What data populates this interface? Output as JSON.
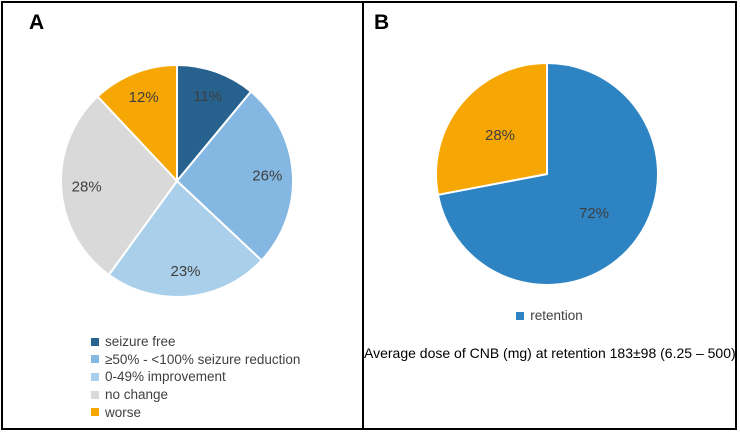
{
  "panels": {
    "a": {
      "label": "A"
    },
    "b": {
      "label": "B",
      "caption": "Average dose of CNB (mg) at retention 183±98 (6.25 – 500)"
    }
  },
  "colors": {
    "dark_blue": "#27628F",
    "medium_blue": "#84B7E2",
    "light_blue": "#A9CFEA",
    "gray": "#D9D9D9",
    "orange": "#F6A704",
    "retention_blue": "#2E84C3",
    "slice_label_text": "#3F3F3F",
    "legend_text": "#404040",
    "border": "#000000"
  },
  "chart_data": [
    {
      "type": "pie",
      "panel": "A",
      "title": "",
      "start_angle_deg_from_top": 0,
      "direction": "clockwise",
      "value_suffix": "%",
      "label_radius": 0.78,
      "legend_position": "bottom-left",
      "slices": [
        {
          "label": "seizure free",
          "value": 11,
          "color": "#27628F"
        },
        {
          "label": "≥50% - <100% seizure reduction",
          "value": 26,
          "color": "#84B7E2"
        },
        {
          "label": "0-49% improvement",
          "value": 23,
          "color": "#A9CFEA"
        },
        {
          "label": "no change",
          "value": 28,
          "color": "#D9D9D9"
        },
        {
          "label": "worse",
          "value": 12,
          "color": "#F6A704"
        }
      ]
    },
    {
      "type": "pie",
      "panel": "B",
      "title": "",
      "start_angle_deg_from_top": 0,
      "direction": "clockwise",
      "value_suffix": "%",
      "label_radius": 0.55,
      "legend_position": "bottom-center",
      "slices": [
        {
          "label": "retention",
          "value": 72,
          "color": "#2E84C3"
        },
        {
          "label": "",
          "value": 28,
          "color": "#F6A704"
        }
      ]
    }
  ]
}
